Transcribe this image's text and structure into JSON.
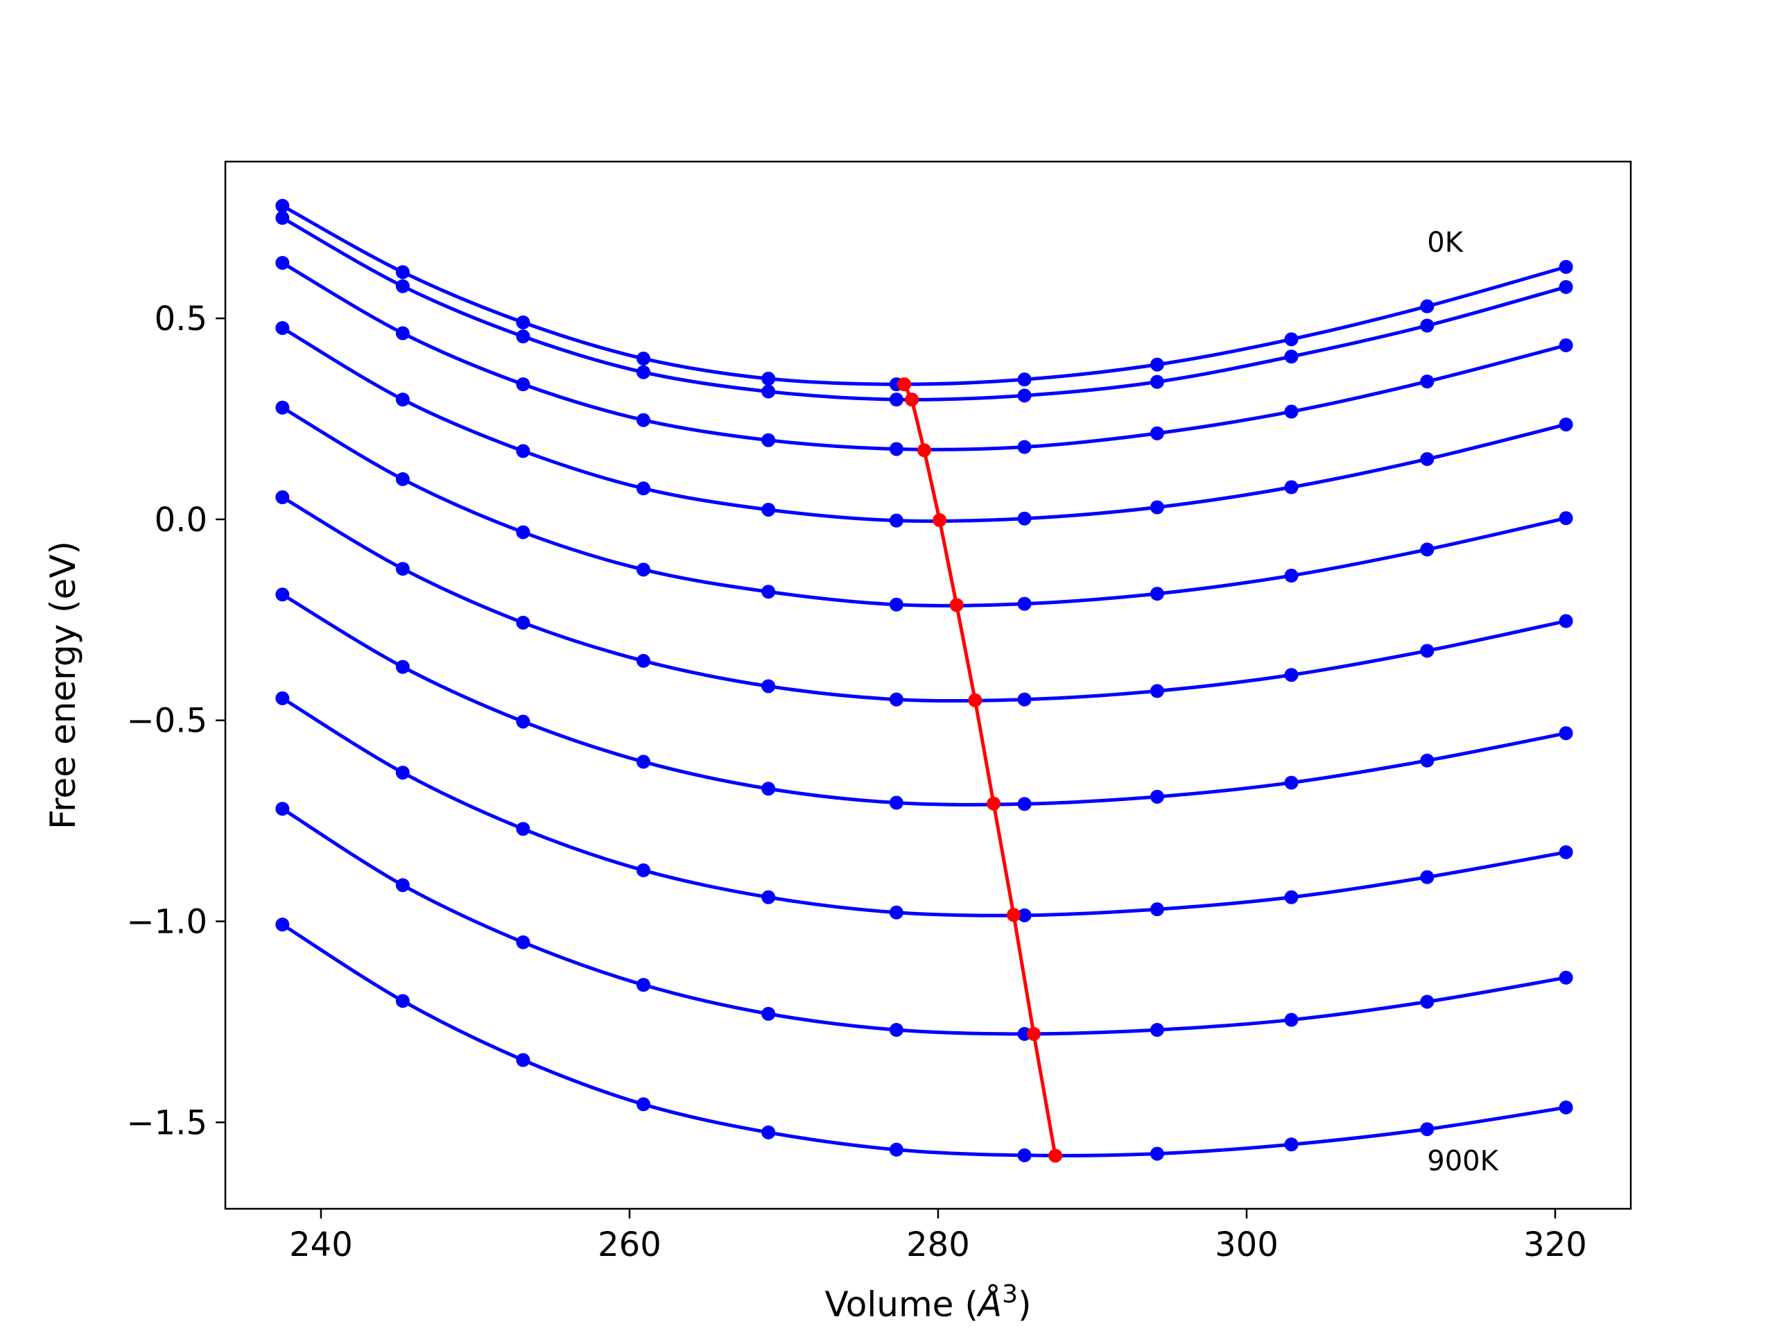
{
  "chart_data": {
    "type": "line",
    "xlabel": "Volume (Å",
    "xlabel_unit_italic": "Å",
    "xlabel_sup": "3",
    "ylabel": "Free energy (eV)",
    "xlim": [
      233.8,
      324.9
    ],
    "ylim": [
      -1.715,
      0.89
    ],
    "xticks": [
      240,
      260,
      280,
      300,
      320
    ],
    "xtick_labels": [
      "240",
      "260",
      "280",
      "300",
      "320"
    ],
    "yticks": [
      0.5,
      0.0,
      -0.5,
      -1.0,
      -1.5
    ],
    "ytick_labels": [
      "0.5",
      "0.0",
      "−0.5",
      "−1.0",
      "−1.5"
    ],
    "grid": false,
    "curve_color": "#0000ff",
    "minimum_color": "#ff0000",
    "x": [
      237.5,
      245.3,
      253.1,
      260.9,
      269.0,
      277.3,
      285.6,
      294.2,
      302.9,
      311.7,
      320.7
    ],
    "series": [
      {
        "values": [
          0.78,
          0.615,
          0.49,
          0.4,
          0.35,
          0.336,
          0.348,
          0.385,
          0.448,
          0.53,
          0.628
        ]
      },
      {
        "values": [
          0.75,
          0.58,
          0.455,
          0.366,
          0.318,
          0.298,
          0.308,
          0.342,
          0.405,
          0.482,
          0.578
        ]
      },
      {
        "values": [
          0.638,
          0.463,
          0.336,
          0.247,
          0.197,
          0.175,
          0.18,
          0.214,
          0.268,
          0.343,
          0.433
        ]
      },
      {
        "values": [
          0.476,
          0.298,
          0.17,
          0.077,
          0.024,
          -0.003,
          0.002,
          0.03,
          0.08,
          0.15,
          0.236
        ]
      },
      {
        "values": [
          0.278,
          0.1,
          -0.032,
          -0.125,
          -0.18,
          -0.212,
          -0.21,
          -0.185,
          -0.14,
          -0.075,
          0.003
        ]
      },
      {
        "values": [
          0.055,
          -0.123,
          -0.257,
          -0.352,
          -0.415,
          -0.448,
          -0.448,
          -0.427,
          -0.387,
          -0.327,
          -0.253
        ]
      },
      {
        "values": [
          -0.187,
          -0.367,
          -0.503,
          -0.603,
          -0.67,
          -0.705,
          -0.708,
          -0.69,
          -0.655,
          -0.6,
          -0.532
        ]
      },
      {
        "values": [
          -0.445,
          -0.63,
          -0.77,
          -0.873,
          -0.94,
          -0.978,
          -0.985,
          -0.97,
          -0.94,
          -0.89,
          -0.828
        ]
      },
      {
        "values": [
          -0.72,
          -0.91,
          -1.052,
          -1.158,
          -1.23,
          -1.27,
          -1.28,
          -1.27,
          -1.245,
          -1.2,
          -1.14
        ]
      },
      {
        "values": [
          -1.008,
          -1.198,
          -1.345,
          -1.455,
          -1.525,
          -1.568,
          -1.582,
          -1.578,
          -1.555,
          -1.517,
          -1.463
        ]
      }
    ],
    "minimum_curve": {
      "x": [
        277.8,
        278.3,
        279.1,
        280.1,
        281.2,
        282.4,
        283.6,
        284.9,
        286.2,
        287.6
      ],
      "y": [
        0.336,
        0.298,
        0.172,
        -0.002,
        -0.213,
        -0.45,
        -0.707,
        -0.984,
        -1.28,
        -1.583
      ]
    },
    "annotations": [
      {
        "text": "0K"
      },
      {
        "text": "900K"
      }
    ]
  }
}
